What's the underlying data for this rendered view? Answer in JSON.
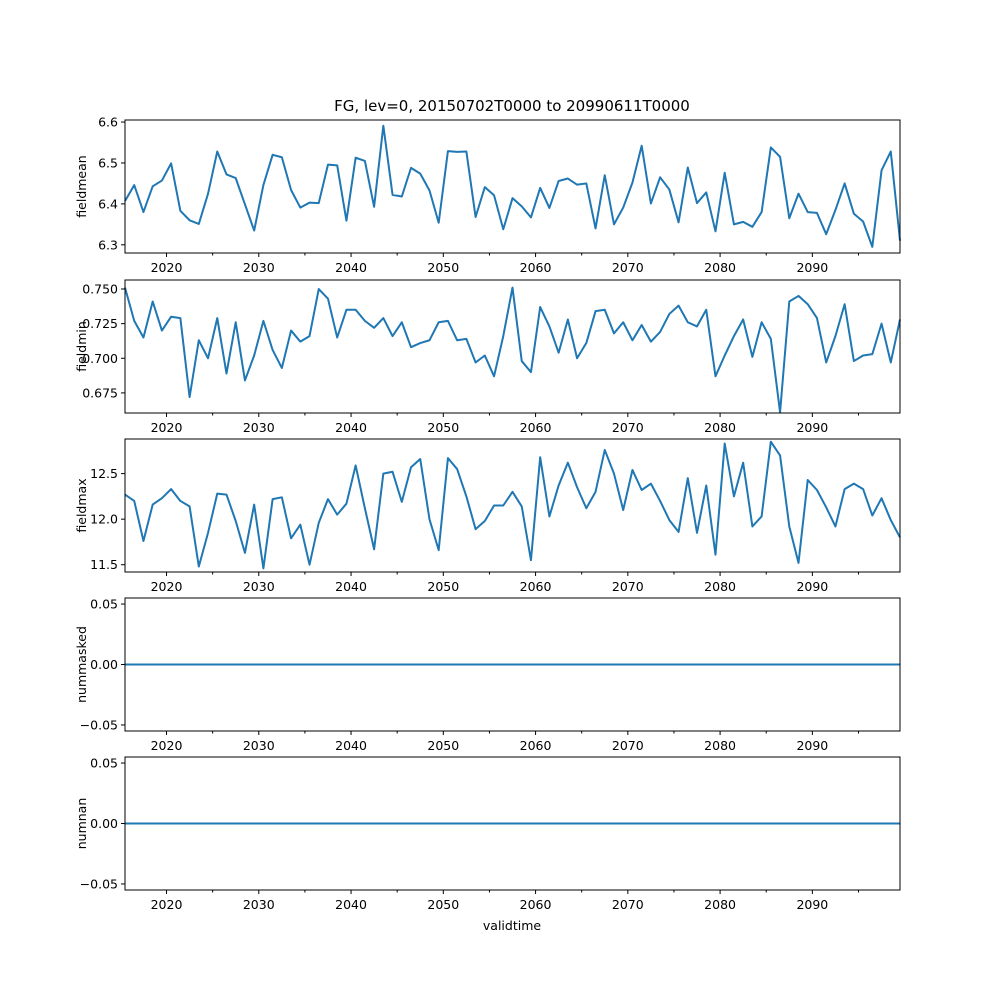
{
  "chart_data": {
    "type": "line",
    "title": "FG, lev=0, 20150702T0000 to 20990611T0000",
    "xlabel": "validtime",
    "color": "#1f77b4",
    "x_start": 2015.5,
    "x_step": 1,
    "xlim": [
      2015.5,
      2099.5
    ],
    "x_major_ticks": [
      2020,
      2030,
      2040,
      2050,
      2060,
      2070,
      2080,
      2090
    ],
    "x_tick_labels": [
      "2020",
      "2030",
      "2040",
      "2050",
      "2060",
      "2070",
      "2080",
      "2090"
    ],
    "x_minor_ticks": [
      2025,
      2035,
      2045,
      2055,
      2065,
      2075,
      2085,
      2095
    ],
    "panels": [
      {
        "ylabel": "fieldmean",
        "ylim": [
          6.28,
          6.605
        ],
        "yticks": [
          6.3,
          6.4,
          6.5,
          6.6
        ],
        "ytick_labels": [
          "6.3",
          "6.4",
          "6.5",
          "6.6"
        ],
        "values": [
          6.407,
          6.446,
          6.38,
          6.443,
          6.457,
          6.499,
          6.383,
          6.36,
          6.351,
          6.425,
          6.528,
          6.472,
          6.463,
          6.399,
          6.335,
          6.446,
          6.52,
          6.514,
          6.434,
          6.391,
          6.403,
          6.402,
          6.496,
          6.494,
          6.359,
          6.513,
          6.505,
          6.393,
          6.591,
          6.422,
          6.418,
          6.488,
          6.474,
          6.433,
          6.354,
          6.529,
          6.527,
          6.528,
          6.368,
          6.441,
          6.421,
          6.338,
          6.414,
          6.394,
          6.367,
          6.439,
          6.39,
          6.456,
          6.462,
          6.447,
          6.45,
          6.34,
          6.47,
          6.35,
          6.391,
          6.452,
          6.542,
          6.401,
          6.465,
          6.435,
          6.355,
          6.489,
          6.402,
          6.428,
          6.333,
          6.476,
          6.35,
          6.356,
          6.344,
          6.38,
          6.538,
          6.515,
          6.365,
          6.425,
          6.38,
          6.378,
          6.326,
          6.385,
          6.45,
          6.376,
          6.357,
          6.295,
          6.482,
          6.528,
          6.31
        ]
      },
      {
        "ylabel": "fieldmin",
        "ylim": [
          0.6605,
          0.7565
        ],
        "yticks": [
          0.675,
          0.7,
          0.725,
          0.75
        ],
        "ytick_labels": [
          "0.675",
          "0.700",
          "0.725",
          "0.750"
        ],
        "values": [
          0.751,
          0.727,
          0.715,
          0.741,
          0.72,
          0.73,
          0.729,
          0.672,
          0.713,
          0.7,
          0.729,
          0.689,
          0.726,
          0.684,
          0.702,
          0.727,
          0.706,
          0.693,
          0.72,
          0.712,
          0.716,
          0.75,
          0.743,
          0.715,
          0.735,
          0.735,
          0.727,
          0.722,
          0.729,
          0.716,
          0.726,
          0.708,
          0.711,
          0.713,
          0.726,
          0.727,
          0.713,
          0.714,
          0.697,
          0.702,
          0.687,
          0.716,
          0.751,
          0.698,
          0.69,
          0.737,
          0.723,
          0.704,
          0.728,
          0.7,
          0.711,
          0.734,
          0.735,
          0.718,
          0.726,
          0.713,
          0.724,
          0.712,
          0.719,
          0.732,
          0.738,
          0.726,
          0.723,
          0.735,
          0.687,
          0.702,
          0.716,
          0.728,
          0.701,
          0.726,
          0.714,
          0.661,
          0.741,
          0.745,
          0.739,
          0.729,
          0.697,
          0.716,
          0.739,
          0.698,
          0.702,
          0.703,
          0.725,
          0.697,
          0.728
        ]
      },
      {
        "ylabel": "fieldmax",
        "ylim": [
          11.42,
          12.88
        ],
        "yticks": [
          11.5,
          12.0,
          12.5
        ],
        "ytick_labels": [
          "11.5",
          "12.0",
          "12.5"
        ],
        "values": [
          12.27,
          12.2,
          11.76,
          12.16,
          12.23,
          12.33,
          12.2,
          12.14,
          11.48,
          11.85,
          12.28,
          12.27,
          11.98,
          11.63,
          12.16,
          11.46,
          12.22,
          12.24,
          11.79,
          11.94,
          11.5,
          11.96,
          12.22,
          12.05,
          12.17,
          12.59,
          12.12,
          11.67,
          12.5,
          12.52,
          12.19,
          12.57,
          12.66,
          12.0,
          11.66,
          12.67,
          12.55,
          12.25,
          11.89,
          11.98,
          12.15,
          12.15,
          12.3,
          12.14,
          11.55,
          12.68,
          12.03,
          12.37,
          12.62,
          12.35,
          12.12,
          12.3,
          12.76,
          12.5,
          12.1,
          12.54,
          12.32,
          12.39,
          12.2,
          11.99,
          11.86,
          12.45,
          11.85,
          12.37,
          11.61,
          12.83,
          12.25,
          12.62,
          11.92,
          12.03,
          12.85,
          12.7,
          11.92,
          11.52,
          12.43,
          12.32,
          12.13,
          11.92,
          12.33,
          12.39,
          12.33,
          12.04,
          12.23,
          11.99,
          11.8
        ]
      },
      {
        "ylabel": "nummasked",
        "ylim": [
          -0.055,
          0.055
        ],
        "yticks": [
          -0.05,
          0.0,
          0.05
        ],
        "ytick_labels": [
          "−0.05",
          "0.00",
          "0.05"
        ],
        "values": [
          0,
          0
        ]
      },
      {
        "ylabel": "numnan",
        "ylim": [
          -0.055,
          0.055
        ],
        "yticks": [
          -0.05,
          0.0,
          0.05
        ],
        "ytick_labels": [
          "−0.05",
          "0.00",
          "0.05"
        ],
        "values": [
          0,
          0
        ]
      }
    ]
  }
}
